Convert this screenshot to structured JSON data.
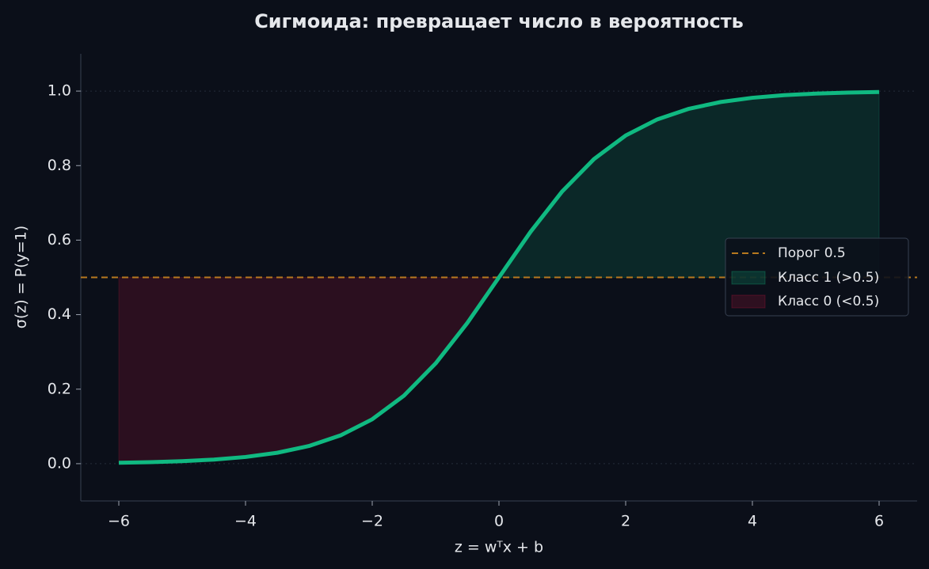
{
  "chart_data": {
    "type": "line",
    "title": "Сигмоида: превращает число в вероятность",
    "xlabel": "z = wᵀx + b",
    "ylabel": "σ(z) = P(y=1)",
    "x": [
      -6,
      -5.5,
      -5,
      -4.5,
      -4,
      -3.5,
      -3,
      -2.5,
      -2,
      -1.5,
      -1,
      -0.5,
      0,
      0.5,
      1,
      1.5,
      2,
      2.5,
      3,
      3.5,
      4,
      4.5,
      5,
      5.5,
      6
    ],
    "series": [
      {
        "name": "σ(z)",
        "color": "#10b981",
        "values": [
          0.0025,
          0.0041,
          0.0067,
          0.011,
          0.018,
          0.0293,
          0.0474,
          0.0759,
          0.1192,
          0.1824,
          0.2689,
          0.3775,
          0.5,
          0.6225,
          0.7311,
          0.8176,
          0.8808,
          0.9241,
          0.9526,
          0.9707,
          0.982,
          0.989,
          0.9933,
          0.9959,
          0.9975
        ]
      }
    ],
    "threshold": {
      "name": "Порог 0.5",
      "value": 0.5,
      "color": "#b7791f"
    },
    "fills": [
      {
        "name": "Класс 1 (>0.5)",
        "color": "#10b981",
        "side": "above"
      },
      {
        "name": "Класс 0 (<0.5)",
        "color": "#be123c",
        "side": "below"
      }
    ],
    "reference_lines": [
      0,
      1
    ],
    "xlim": [
      -6.6,
      6.6
    ],
    "ylim": [
      -0.1,
      1.1
    ],
    "xticks": [
      {
        "value": -6,
        "label": "−6"
      },
      {
        "value": -4,
        "label": "−4"
      },
      {
        "value": -2,
        "label": "−2"
      },
      0,
      2,
      4,
      6
    ],
    "yticks": [
      {
        "value": 0,
        "label": "0.0"
      },
      {
        "value": 0.2,
        "label": "0.2"
      },
      {
        "value": 0.4,
        "label": "0.4"
      },
      {
        "value": 0.6,
        "label": "0.6"
      },
      {
        "value": 0.8,
        "label": "0.8"
      },
      {
        "value": 1,
        "label": "1.0"
      }
    ],
    "legend": "center right"
  }
}
